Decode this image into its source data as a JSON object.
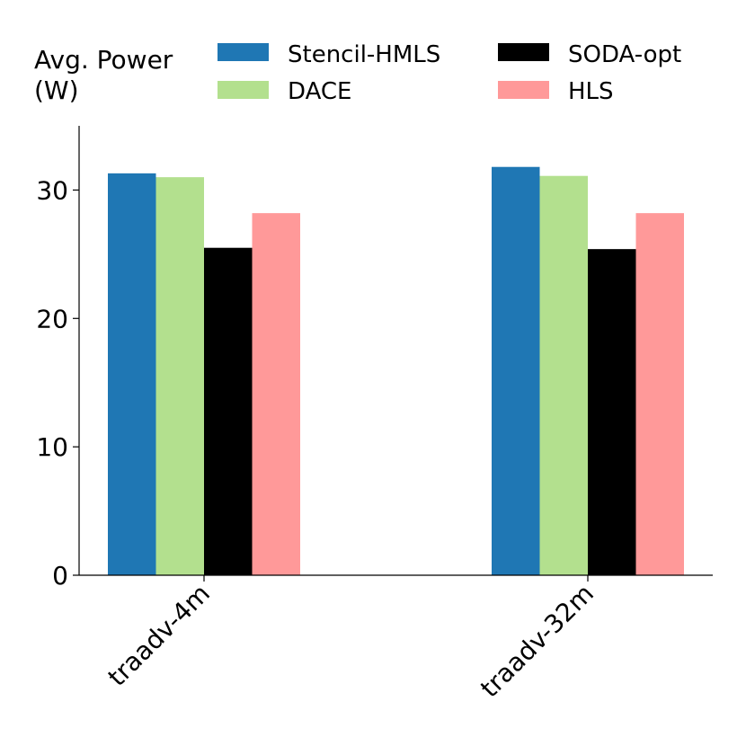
{
  "chart_data": {
    "type": "bar",
    "title": "",
    "xlabel": "",
    "ylabel_lines": [
      "Avg. Power",
      "(W)"
    ],
    "categories": [
      "traadv-4m",
      "traadv-32m"
    ],
    "series": [
      {
        "name": "Stencil-HMLS",
        "color": "#1f77b4",
        "values": [
          31.3,
          31.8
        ]
      },
      {
        "name": "DACE",
        "color": "#b3e08e",
        "values": [
          31.0,
          31.1
        ]
      },
      {
        "name": "SODA-opt",
        "color": "#000000",
        "values": [
          25.5,
          25.4
        ]
      },
      {
        "name": "HLS",
        "color": "#ff9999",
        "values": [
          28.2,
          28.2
        ]
      }
    ],
    "ylim": [
      0,
      35
    ],
    "yticks": [
      0,
      10,
      20,
      30
    ],
    "grid": false,
    "legend_position": "top",
    "legend_columns": 2
  }
}
